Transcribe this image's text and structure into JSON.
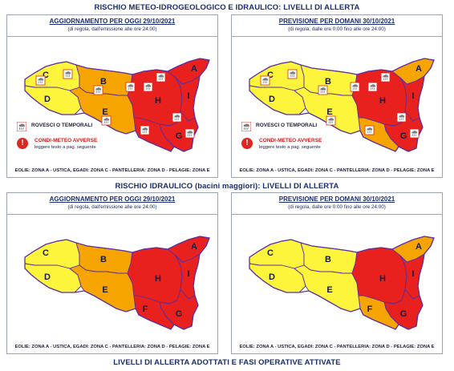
{
  "sections": {
    "meteo_title": "RISCHIO METEO-IDROGEOLOGICO E IDRAULICO: LIVELLI DI ALLERTA",
    "idraulico_title": "RISCHIO IDRAULICO (bacini maggiori): LIVELLI DI ALLERTA",
    "bottom_title": "LIVELLI DI ALLERTA ADOTTATI E FASI OPERATIVE ATTIVATE"
  },
  "panels": {
    "today": {
      "heading": "AGGIORNAMENTO PER OGGI 29/10/2021",
      "subheading": "(di regola, dall'emissione alle ore 24:00)"
    },
    "tomorrow": {
      "heading": "PREVISIONE PER DOMANI 30/10/2021",
      "subheading": "(di regola, dalle ore 0:00 fino alle ore 24:00)"
    }
  },
  "legend": {
    "storms": "ROVESCI O TEMPORALI",
    "adverse": "CONDI-METEO AVVERSE",
    "adverse_note": "leggere testo a pag. seguente"
  },
  "footer": "EOLIE: ZONA A - USTICA, EGADI: ZONA C - PANTELLERIA: ZONA D - PELAGIE: ZONA E",
  "zone_labels": {
    "A": "A",
    "B": "B",
    "C": "C",
    "D": "D",
    "E": "E",
    "F": "F",
    "G": "G",
    "H": "H",
    "I": "I"
  },
  "colors": {
    "yellow": "#fdf43c",
    "orange": "#f6a500",
    "red": "#e8201e",
    "border": "#5c2f9c"
  },
  "maps": {
    "meteo_today": {
      "A": "red",
      "B": "orange",
      "C": "yellow",
      "D": "yellow",
      "E": "orange",
      "F": "red",
      "G": "red",
      "H": "red",
      "I": "red"
    },
    "meteo_tomorrow": {
      "A": "orange",
      "B": "yellow",
      "C": "yellow",
      "D": "yellow",
      "E": "yellow",
      "F": "orange",
      "G": "red",
      "H": "red",
      "I": "red"
    },
    "idro_today": {
      "A": "red",
      "B": "orange",
      "C": "yellow",
      "D": "yellow",
      "E": "orange",
      "F": "red",
      "G": "red",
      "H": "red",
      "I": "red"
    },
    "idro_tomorrow": {
      "A": "orange",
      "B": "yellow",
      "C": "yellow",
      "D": "yellow",
      "E": "yellow",
      "F": "orange",
      "G": "red",
      "H": "red",
      "I": "red"
    }
  },
  "icons": {
    "storm": "storm-cloud-icon",
    "warning": "exclamation-icon"
  }
}
